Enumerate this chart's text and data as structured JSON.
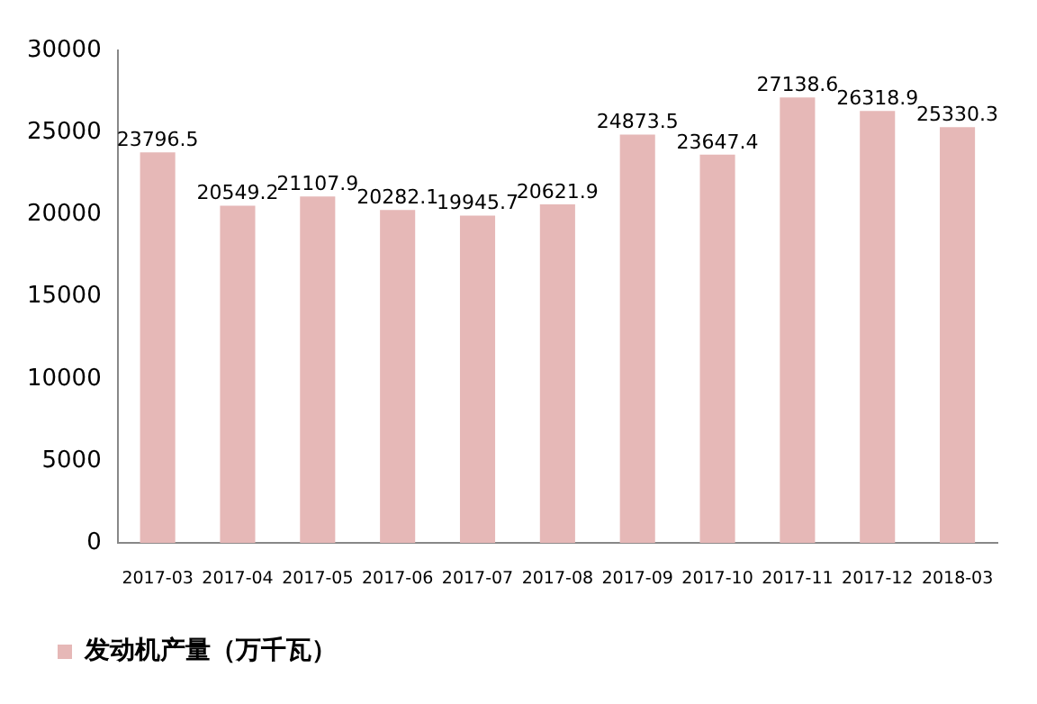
{
  "chart_data": {
    "type": "bar",
    "categories": [
      "2017-03",
      "2017-04",
      "2017-05",
      "2017-06",
      "2017-07",
      "2017-08",
      "2017-09",
      "2017-10",
      "2017-11",
      "2017-12",
      "2018-03"
    ],
    "series": [
      {
        "name": "发动机产量（万千瓦）",
        "color": "#e6b8b7",
        "values": [
          23796.5,
          20549.2,
          21107.9,
          20282.1,
          19945.7,
          20621.9,
          24873.5,
          23647.4,
          27138.6,
          26318.9,
          25330.3
        ]
      }
    ],
    "ylim": [
      0,
      30000
    ],
    "yticks": [
      0,
      5000,
      10000,
      15000,
      20000,
      25000,
      30000
    ],
    "grid": false,
    "legend": "bottom",
    "data_labels": true
  }
}
